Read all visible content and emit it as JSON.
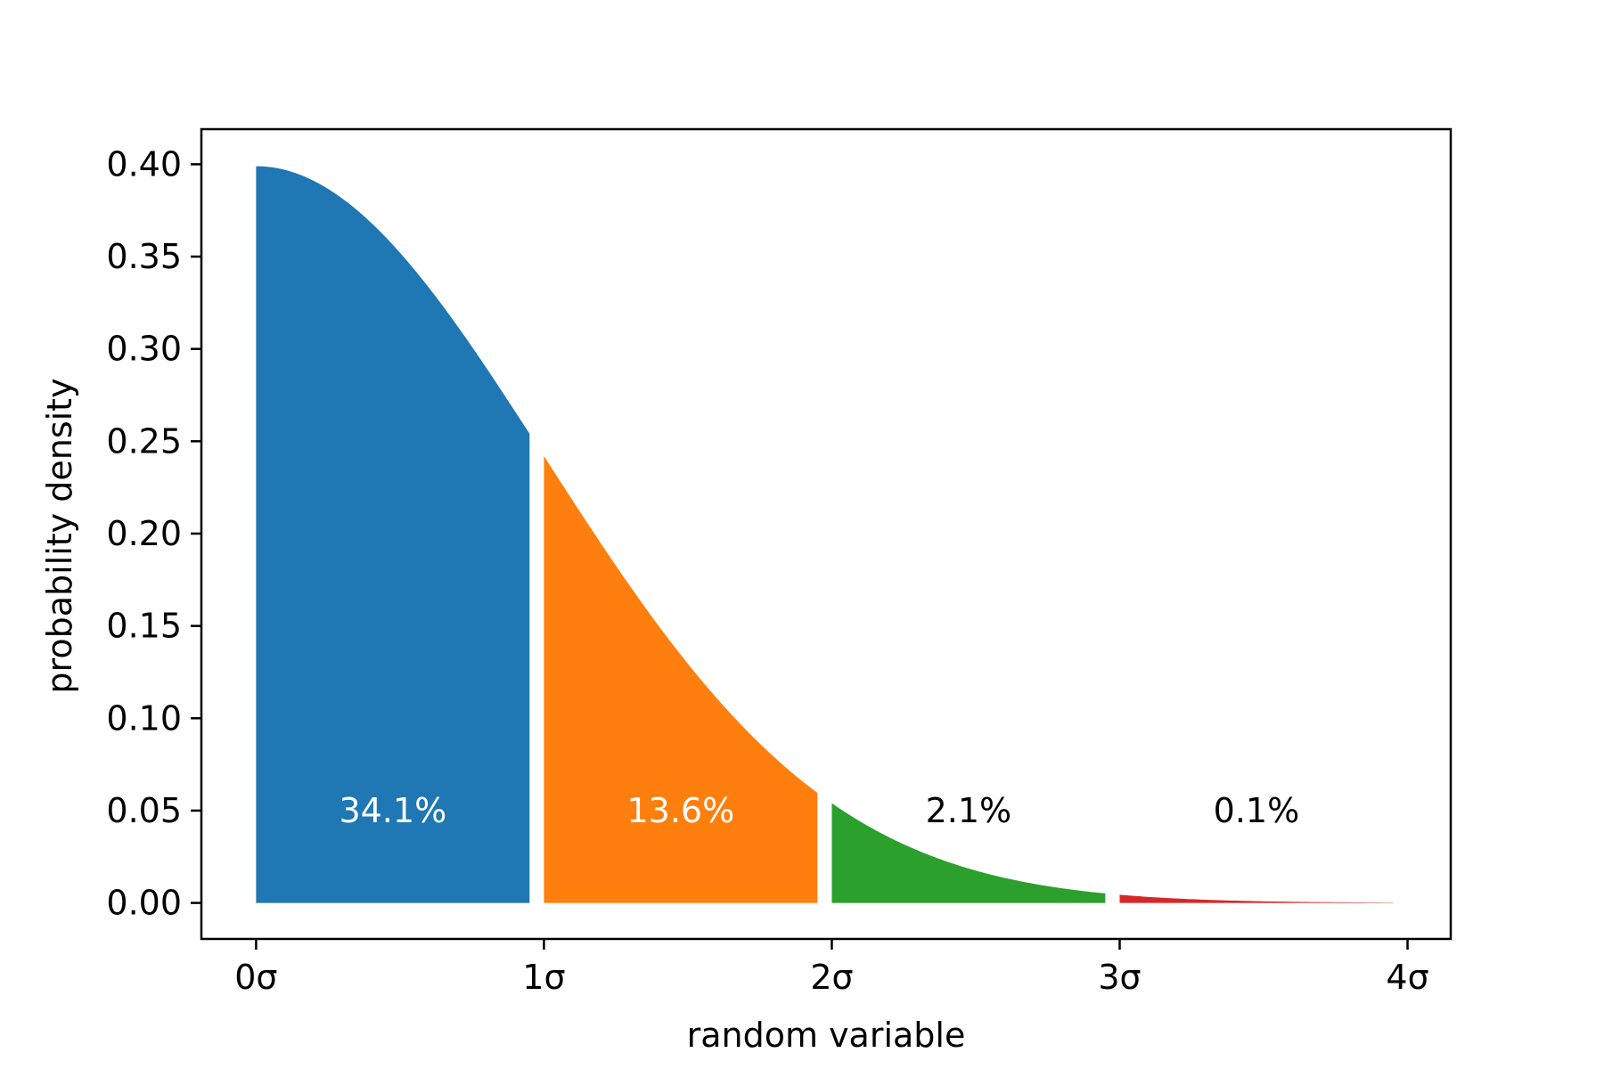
{
  "chart_data": {
    "type": "area",
    "xlabel": "random variable",
    "ylabel": "probability density",
    "xlim": [
      -0.19,
      4.15
    ],
    "ylim": [
      -0.0195,
      0.419
    ],
    "x_ticks": [
      {
        "value": 0,
        "label": "0σ"
      },
      {
        "value": 1,
        "label": "1σ"
      },
      {
        "value": 2,
        "label": "2σ"
      },
      {
        "value": 3,
        "label": "3σ"
      },
      {
        "value": 4,
        "label": "4σ"
      }
    ],
    "y_ticks": [
      {
        "value": 0.0,
        "label": "0.00"
      },
      {
        "value": 0.05,
        "label": "0.05"
      },
      {
        "value": 0.1,
        "label": "0.10"
      },
      {
        "value": 0.15,
        "label": "0.15"
      },
      {
        "value": 0.2,
        "label": "0.20"
      },
      {
        "value": 0.25,
        "label": "0.25"
      },
      {
        "value": 0.3,
        "label": "0.30"
      },
      {
        "value": 0.35,
        "label": "0.35"
      },
      {
        "value": 0.4,
        "label": "0.40"
      }
    ],
    "curve": "standard normal density, x ≥ 0",
    "segments": [
      {
        "x_start": 0,
        "x_end": 0.95,
        "color": "#1f77b4",
        "label": "34.1%",
        "label_color": "#ffffff"
      },
      {
        "x_start": 1,
        "x_end": 1.95,
        "color": "#ff7f0e",
        "label": "13.6%",
        "label_color": "#ffffff"
      },
      {
        "x_start": 2,
        "x_end": 2.95,
        "color": "#2ca02c",
        "label": "2.1%",
        "label_color": "#000000"
      },
      {
        "x_start": 3,
        "x_end": 3.95,
        "color": "#d62728",
        "label": "0.1%",
        "label_color": "#000000"
      }
    ],
    "label_y": 0.05,
    "grid": false,
    "legend": "none"
  }
}
